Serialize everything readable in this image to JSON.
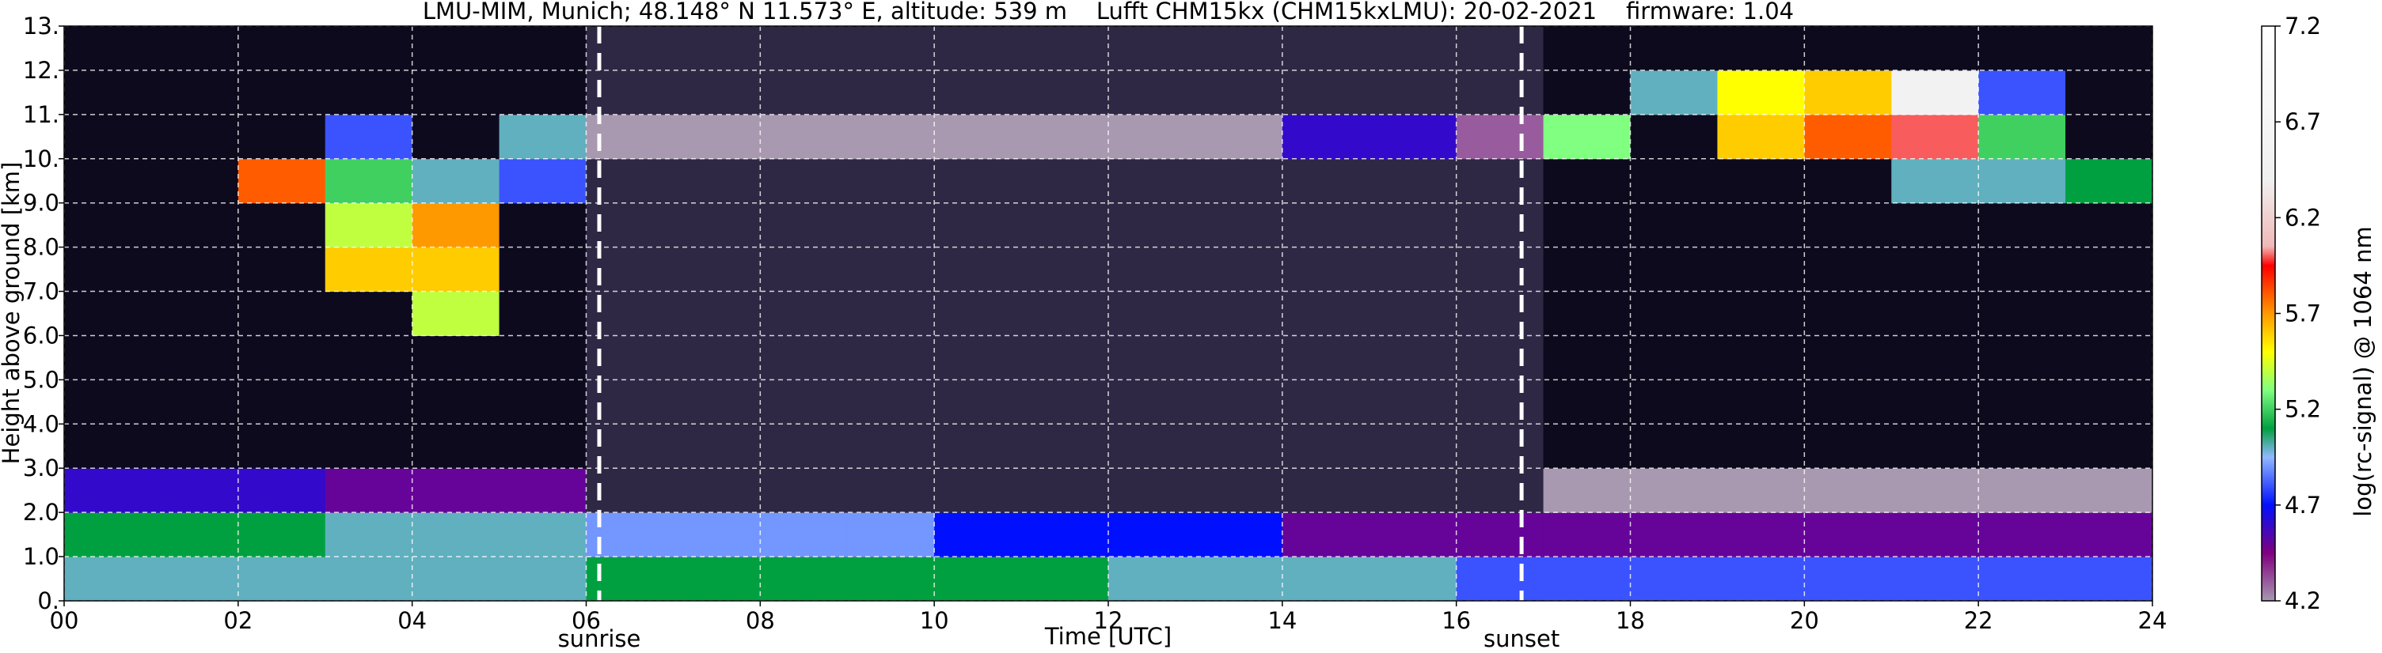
{
  "chart_data": {
    "type": "heatmap",
    "title": "LMU-MIM, Munich; 48.148° N 11.573° E, altitude: 539 m    Lufft CHM15kx (CHM15kxLMU): 20-02-2021    firmware: 1.04",
    "xlabel": "Time [UTC]",
    "ylabel": "Height above ground [km]",
    "colorbar_label": "log(rc-signal) @ 1064 nm",
    "xlim": [
      0,
      24
    ],
    "ylim": [
      0,
      13
    ],
    "xticks": [
      {
        "value": 0,
        "label": "00"
      },
      {
        "value": 2,
        "label": "02"
      },
      {
        "value": 4,
        "label": "04"
      },
      {
        "value": 6,
        "label": "06"
      },
      {
        "value": 8,
        "label": "08"
      },
      {
        "value": 10,
        "label": "10"
      },
      {
        "value": 12,
        "label": "12"
      },
      {
        "value": 14,
        "label": "14"
      },
      {
        "value": 16,
        "label": "16"
      },
      {
        "value": 18,
        "label": "18"
      },
      {
        "value": 20,
        "label": "20"
      },
      {
        "value": 22,
        "label": "22"
      },
      {
        "value": 24,
        "label": "24"
      }
    ],
    "yticks": [
      {
        "value": 0,
        "label": "0."
      },
      {
        "value": 1,
        "label": "1.0"
      },
      {
        "value": 2,
        "label": "2.0"
      },
      {
        "value": 3,
        "label": "3.0"
      },
      {
        "value": 4,
        "label": "4.0"
      },
      {
        "value": 5,
        "label": "5.0"
      },
      {
        "value": 6,
        "label": "6.0"
      },
      {
        "value": 7,
        "label": "7.0"
      },
      {
        "value": 8,
        "label": "8.0"
      },
      {
        "value": 9,
        "label": "9.0"
      },
      {
        "value": 10,
        "label": "10."
      },
      {
        "value": 11,
        "label": "11."
      },
      {
        "value": 12,
        "label": "12."
      },
      {
        "value": 13,
        "label": "13."
      }
    ],
    "grid": true,
    "x": [
      0,
      1,
      2,
      3,
      4,
      5,
      6,
      7,
      8,
      9,
      10,
      11,
      12,
      13,
      14,
      15,
      16,
      17,
      18,
      19,
      20,
      21,
      22,
      23
    ],
    "y": [
      0,
      1,
      2,
      3,
      4,
      5,
      6,
      7,
      8,
      9,
      10,
      11,
      12
    ],
    "z": [
      [
        5.0,
        5.0,
        5.0,
        5.0,
        5.0,
        5.0,
        5.1,
        5.1,
        5.1,
        5.1,
        5.1,
        5.1,
        5.0,
        5.0,
        5.0,
        5.0,
        4.8,
        4.8,
        4.8,
        4.8,
        4.8,
        4.8,
        4.8,
        4.8
      ],
      [
        5.1,
        5.1,
        5.1,
        5.0,
        5.0,
        5.0,
        4.9,
        4.9,
        4.9,
        4.9,
        4.7,
        4.7,
        4.7,
        4.7,
        4.5,
        4.5,
        4.5,
        4.5,
        4.5,
        4.5,
        4.5,
        4.5,
        4.5,
        4.5
      ],
      [
        4.6,
        4.6,
        4.6,
        4.5,
        4.5,
        4.5,
        4.1,
        4.1,
        4.1,
        4.1,
        4.1,
        4.1,
        4.1,
        4.1,
        4.1,
        4.1,
        4.1,
        4.2,
        4.2,
        4.2,
        4.2,
        4.2,
        4.2,
        4.2
      ],
      [
        4.0,
        4.0,
        4.0,
        4.0,
        4.0,
        4.0,
        4.1,
        4.1,
        4.1,
        4.1,
        4.1,
        4.1,
        4.1,
        4.1,
        4.1,
        4.1,
        4.1,
        4.0,
        4.0,
        4.0,
        4.0,
        4.0,
        4.0,
        4.0
      ],
      [
        4.0,
        4.0,
        4.0,
        4.0,
        4.0,
        4.0,
        4.1,
        4.1,
        4.1,
        4.1,
        4.1,
        4.1,
        4.1,
        4.1,
        4.1,
        4.1,
        4.1,
        4.0,
        4.0,
        4.0,
        4.0,
        4.0,
        4.0,
        4.0
      ],
      [
        4.0,
        4.0,
        4.0,
        4.0,
        4.0,
        4.0,
        4.1,
        4.1,
        4.1,
        4.1,
        4.1,
        4.1,
        4.1,
        4.1,
        4.1,
        4.1,
        4.1,
        4.0,
        4.0,
        4.0,
        4.0,
        4.0,
        4.0,
        4.0
      ],
      [
        4.0,
        4.0,
        4.0,
        4.0,
        5.4,
        4.0,
        4.1,
        4.1,
        4.1,
        4.1,
        4.1,
        4.1,
        4.1,
        4.1,
        4.1,
        4.1,
        4.1,
        4.0,
        4.0,
        4.0,
        4.0,
        4.0,
        4.0,
        4.0
      ],
      [
        4.0,
        4.0,
        4.0,
        5.6,
        5.6,
        4.0,
        4.1,
        4.1,
        4.1,
        4.1,
        4.1,
        4.1,
        4.1,
        4.1,
        4.1,
        4.1,
        4.1,
        4.0,
        4.0,
        4.0,
        4.0,
        4.0,
        4.0,
        4.0
      ],
      [
        4.0,
        4.0,
        4.0,
        5.4,
        5.7,
        4.0,
        4.1,
        4.1,
        4.1,
        4.1,
        4.1,
        4.1,
        4.1,
        4.1,
        4.1,
        4.1,
        4.1,
        4.0,
        4.0,
        4.0,
        4.0,
        4.0,
        4.0,
        4.0
      ],
      [
        4.0,
        4.0,
        5.8,
        5.2,
        5.0,
        4.8,
        4.1,
        4.1,
        4.1,
        4.1,
        4.1,
        4.1,
        4.1,
        4.1,
        4.1,
        4.1,
        4.1,
        4.0,
        4.0,
        4.0,
        4.0,
        5.0,
        5.0,
        5.1
      ],
      [
        4.0,
        4.0,
        4.0,
        4.8,
        4.0,
        5.0,
        4.2,
        4.2,
        4.2,
        4.2,
        4.2,
        4.2,
        4.2,
        4.2,
        4.6,
        4.6,
        4.3,
        5.3,
        4.0,
        5.6,
        5.8,
        6.0,
        5.2,
        4.0
      ],
      [
        4.0,
        4.0,
        4.0,
        4.0,
        4.0,
        4.0,
        4.1,
        4.1,
        4.1,
        4.1,
        4.1,
        4.1,
        4.1,
        4.1,
        4.1,
        4.1,
        4.1,
        4.0,
        5.0,
        5.5,
        5.6,
        6.5,
        4.8,
        4.0
      ],
      [
        4.0,
        4.0,
        4.0,
        4.0,
        4.0,
        4.0,
        4.1,
        4.1,
        4.1,
        4.1,
        4.1,
        4.1,
        4.1,
        4.1,
        4.1,
        4.1,
        4.1,
        4.0,
        4.0,
        4.0,
        4.0,
        4.0,
        4.0,
        4.0
      ]
    ],
    "clim": [
      4.2,
      7.2
    ],
    "cticks": [
      4.2,
      4.7,
      5.2,
      5.7,
      6.2,
      6.7,
      7.2
    ],
    "colorscale": [
      [
        4.0,
        "#0e0a1e"
      ],
      [
        4.1,
        "#2e2845"
      ],
      [
        4.2,
        "#a898b0"
      ],
      [
        4.45,
        "#800080"
      ],
      [
        4.7,
        "#0010ff"
      ],
      [
        4.95,
        "#90b8ff"
      ],
      [
        5.1,
        "#00a040"
      ],
      [
        5.3,
        "#80ff80"
      ],
      [
        5.5,
        "#ffff00"
      ],
      [
        5.7,
        "#ff9900"
      ],
      [
        5.95,
        "#ff0000"
      ],
      [
        6.05,
        "#f0b8b8"
      ],
      [
        6.4,
        "#f0f0f0"
      ],
      [
        7.2,
        "#ffffff"
      ]
    ],
    "annotations": [
      {
        "x": 6.15,
        "text": "sunrise"
      },
      {
        "x": 16.75,
        "text": "sunset"
      }
    ]
  }
}
